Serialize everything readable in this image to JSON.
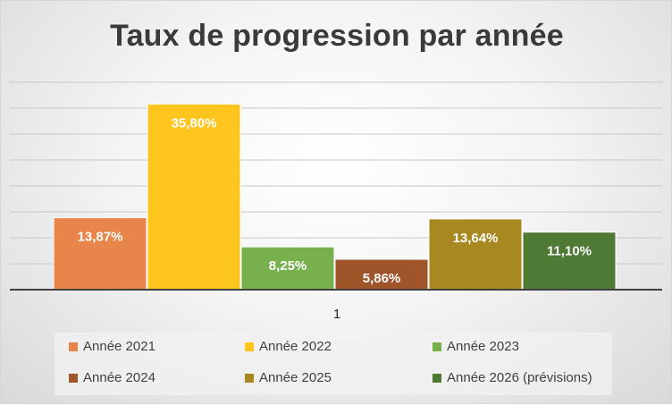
{
  "chart_data": {
    "type": "bar",
    "title": "Taux de progression par année",
    "categories": [
      "1"
    ],
    "ylim": [
      0,
      0.4
    ],
    "grid": true,
    "legend_position": "bottom",
    "series": [
      {
        "name": "Année 2021",
        "value": 0.1387,
        "label": "13,87%",
        "color": "#E8854B"
      },
      {
        "name": "Année 2022",
        "value": 0.358,
        "label": "35,80%",
        "color": "#FFC51F"
      },
      {
        "name": "Année 2023",
        "value": 0.0825,
        "label": "8,25%",
        "color": "#78B04E"
      },
      {
        "name": "Année 2024",
        "value": 0.0586,
        "label": "5,86%",
        "color": "#A0542A"
      },
      {
        "name": "Année 2025",
        "value": 0.1364,
        "label": "13,64%",
        "color": "#A88820"
      },
      {
        "name": "Année 2026 (prévisions)",
        "value": 0.111,
        "label": "11,10%",
        "color": "#4F7A36"
      }
    ]
  }
}
